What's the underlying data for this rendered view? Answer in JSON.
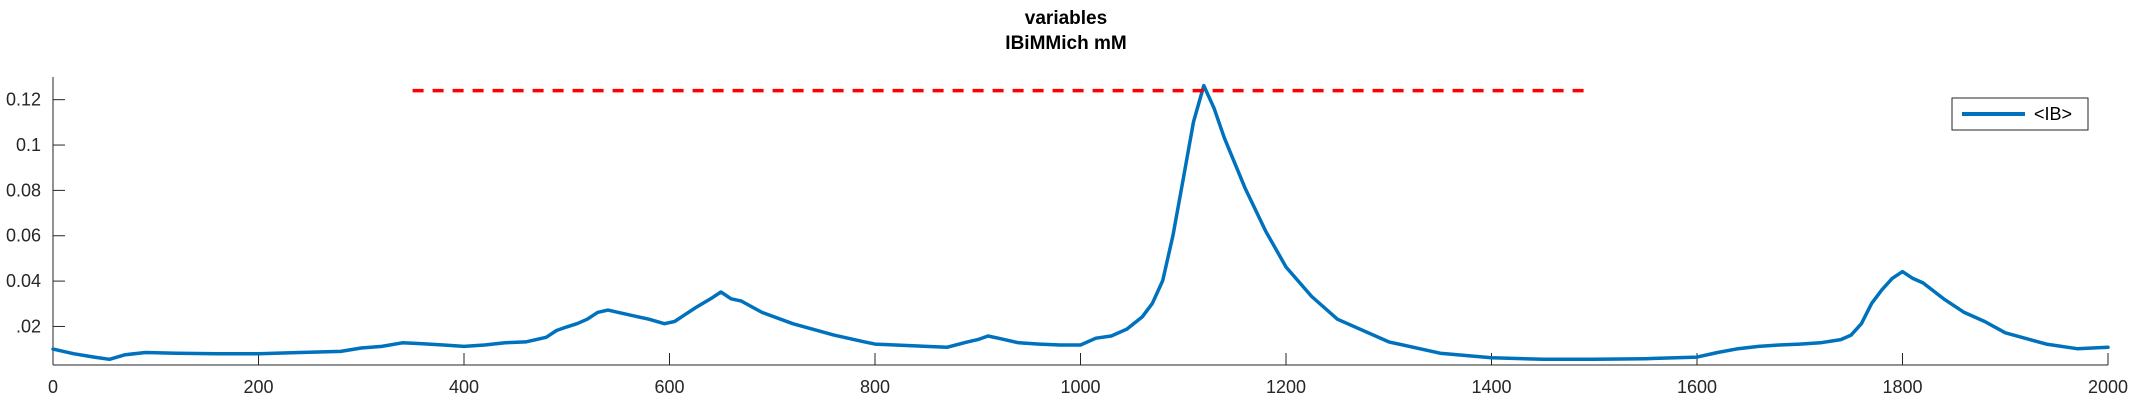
{
  "chart_data": {
    "type": "line",
    "title_lines": [
      "variables",
      "IBiMMich mM"
    ],
    "xlabel": "",
    "ylabel": "",
    "xlim": [
      0,
      2000
    ],
    "ylim": [
      0.003,
      0.13
    ],
    "x_ticks": [
      0,
      200,
      400,
      600,
      800,
      1000,
      1200,
      1400,
      1600,
      1800,
      2000
    ],
    "x_tick_labels": [
      "0",
      "200",
      "400",
      "600",
      "800",
      "1000",
      "1200",
      "1400",
      "1600",
      "1800",
      "2000"
    ],
    "y_ticks": [
      0.02,
      0.04,
      0.06,
      0.08,
      0.1,
      0.12
    ],
    "y_tick_labels": [
      ".02",
      "0.04",
      "0.06",
      "0.08",
      "0.1",
      "0.12"
    ],
    "grid": false,
    "legend_placement": "top-right",
    "series": [
      {
        "name": "<IB>",
        "color": "#0072BD",
        "x": [
          0,
          20,
          40,
          55,
          70,
          90,
          120,
          160,
          200,
          240,
          280,
          300,
          320,
          340,
          360,
          380,
          400,
          420,
          440,
          460,
          480,
          490,
          500,
          510,
          520,
          530,
          540,
          560,
          580,
          595,
          605,
          615,
          625,
          640,
          650,
          660,
          670,
          690,
          720,
          760,
          790,
          800,
          820,
          850,
          870,
          890,
          900,
          910,
          920,
          940,
          960,
          980,
          1000,
          1015,
          1030,
          1045,
          1060,
          1070,
          1080,
          1090,
          1100,
          1110,
          1120,
          1130,
          1140,
          1160,
          1180,
          1200,
          1225,
          1250,
          1300,
          1350,
          1400,
          1450,
          1500,
          1550,
          1600,
          1620,
          1640,
          1660,
          1680,
          1700,
          1720,
          1740,
          1750,
          1760,
          1770,
          1780,
          1790,
          1800,
          1810,
          1820,
          1840,
          1860,
          1880,
          1900,
          1940,
          1970,
          2000
        ],
        "values": [
          0.01,
          0.008,
          0.0065,
          0.0055,
          0.0075,
          0.0085,
          0.0082,
          0.008,
          0.008,
          0.0085,
          0.009,
          0.0105,
          0.0112,
          0.0128,
          0.0124,
          0.0118,
          0.0112,
          0.0118,
          0.0128,
          0.0132,
          0.0152,
          0.0182,
          0.0198,
          0.0212,
          0.0232,
          0.0262,
          0.0272,
          0.0252,
          0.0232,
          0.0212,
          0.0222,
          0.0252,
          0.0282,
          0.0322,
          0.0352,
          0.0322,
          0.0312,
          0.0262,
          0.0212,
          0.0162,
          0.0132,
          0.0122,
          0.0118,
          0.0112,
          0.0108,
          0.0132,
          0.0142,
          0.0158,
          0.0148,
          0.0128,
          0.0122,
          0.0118,
          0.0118,
          0.0148,
          0.0158,
          0.0188,
          0.0242,
          0.0302,
          0.0402,
          0.0602,
          0.0852,
          0.1102,
          0.1262,
          0.1162,
          0.1032,
          0.0812,
          0.0622,
          0.0462,
          0.0332,
          0.0232,
          0.0132,
          0.0082,
          0.0062,
          0.0055,
          0.0055,
          0.0058,
          0.0065,
          0.0085,
          0.0102,
          0.0112,
          0.0118,
          0.0122,
          0.0128,
          0.0142,
          0.0162,
          0.0212,
          0.0302,
          0.0362,
          0.0412,
          0.0442,
          0.0412,
          0.0392,
          0.0322,
          0.0262,
          0.0222,
          0.0172,
          0.0122,
          0.0102,
          0.0108
        ]
      },
      {
        "name": "",
        "color": "#FF0000",
        "style": "dashed",
        "x": [
          350,
          1490
        ],
        "values": [
          0.124,
          0.124
        ]
      }
    ]
  }
}
